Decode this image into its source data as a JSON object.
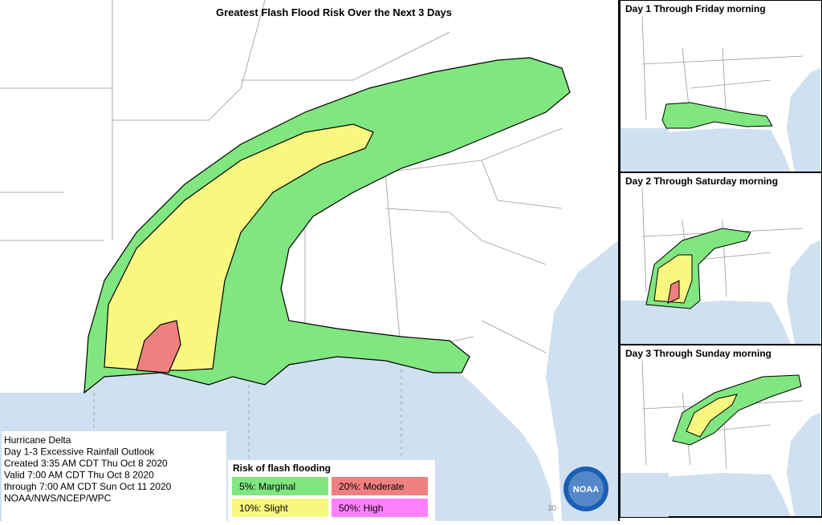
{
  "title": "Greatest Flash Flood Risk Over the Next 3 Days",
  "insets": [
    {
      "title": "Day 1 Through Friday morning"
    },
    {
      "title": "Day 2 Through Saturday morning"
    },
    {
      "title": "Day 3 Through Sunday morning"
    }
  ],
  "info": {
    "lines": [
      "Hurricane Delta",
      "Day 1-3 Excessive Rainfall Outlook",
      "Created 3:35 AM CDT Thu Oct 8 2020",
      "Valid 7:00 AM CDT Thu Oct 8 2020",
      "through 7:00 AM CDT Sun Oct 11 2020",
      "NOAA/NWS/NCEP/WPC"
    ]
  },
  "legend": {
    "title": "Risk of flash flooding",
    "items": [
      {
        "label": "5%: Marginal",
        "color": "#80e680"
      },
      {
        "label": "20%: Moderate",
        "color": "#f08080"
      },
      {
        "label": "10%: Slight",
        "color": "#f8f880"
      },
      {
        "label": "50%: High",
        "color": "#ff80ff"
      }
    ]
  },
  "logo": "NOAA",
  "map_label": "30"
}
